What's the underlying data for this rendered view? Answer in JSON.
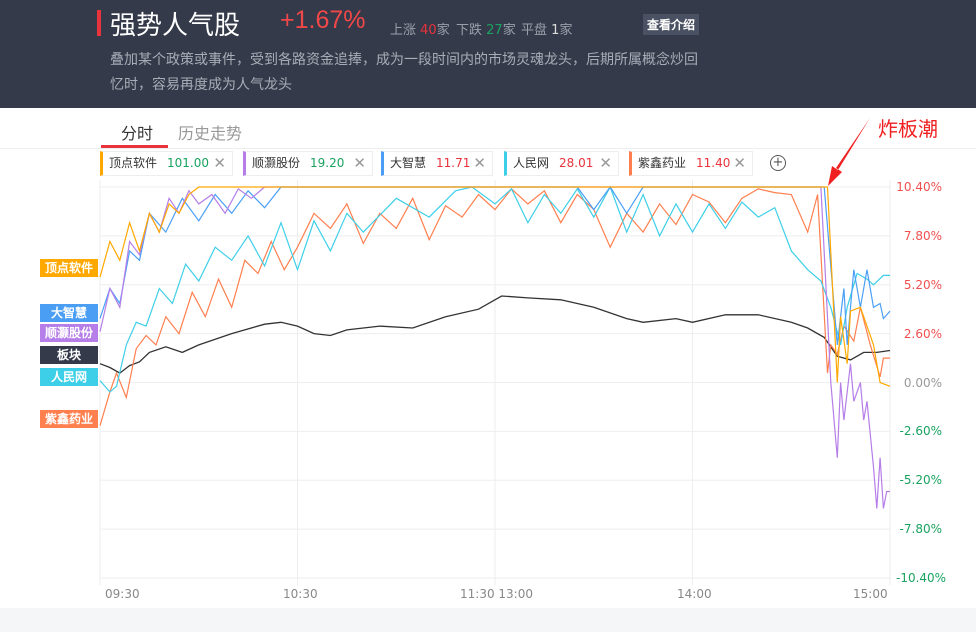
{
  "header": {
    "title": "强势人气股",
    "change": "+1.67%",
    "up_label": "上涨",
    "up_count": "40",
    "down_label": "下跌",
    "down_count": "27",
    "flat_label": "平盘",
    "flat_count": "1",
    "unit": "家",
    "intro_button": "查看介绍",
    "description": "叠加某个政策或事件，受到各路资金追捧，成为一段时间内的市场灵魂龙头，后期所属概念炒回忆时，容易再度成为人气龙头"
  },
  "tabs": [
    {
      "label": "分时",
      "active": true
    },
    {
      "label": "历史走势",
      "active": false
    }
  ],
  "chips": [
    {
      "name": "顶点软件",
      "price": "101.00",
      "color": "#ffa800",
      "price_color": "#1aa260"
    },
    {
      "name": "顺灏股份",
      "price": "19.20",
      "color": "#b57ee8",
      "price_color": "#1aa260"
    },
    {
      "name": "大智慧",
      "price": "11.71",
      "color": "#4a9ff5",
      "price_color": "#e8333c"
    },
    {
      "name": "人民网",
      "price": "28.01",
      "color": "#3ecfe8",
      "price_color": "#e8333c"
    },
    {
      "name": "紫鑫药业",
      "price": "11.40",
      "color": "#ff7f4f",
      "price_color": "#e8333c"
    }
  ],
  "add_icon": "plus-circle-icon",
  "annotation": "炸板潮",
  "left_tags": [
    {
      "label": "顶点软件",
      "color": "#ffa800"
    },
    {
      "label": "大智慧",
      "color": "#4a9ff5"
    },
    {
      "label": "顺灏股份",
      "color": "#b57ee8"
    },
    {
      "label": "板块",
      "color": "#343a4a"
    },
    {
      "label": "人民网",
      "color": "#3ecfe8"
    },
    {
      "label": "紫鑫药业",
      "color": "#ff7f4f"
    }
  ],
  "chart_data": {
    "type": "line",
    "x_unit": "minutes since 09:30 (trading time)",
    "xticks": [
      "09:30",
      "10:30",
      "11:30 13:00",
      "14:00",
      "15:00"
    ],
    "yticks": [
      "10.40%",
      "7.80%",
      "5.20%",
      "2.60%",
      "0.00%",
      "-2.60%",
      "-5.20%",
      "-7.80%",
      "-10.40%"
    ],
    "ylim": [
      -10.4,
      10.4
    ],
    "grid": true,
    "series": [
      {
        "name": "板块",
        "color": "#333333",
        "points": [
          [
            0,
            1.0
          ],
          [
            3,
            0.8
          ],
          [
            6,
            0.5
          ],
          [
            9,
            0.9
          ],
          [
            12,
            1.1
          ],
          [
            15,
            1.6
          ],
          [
            20,
            1.9
          ],
          [
            25,
            1.6
          ],
          [
            30,
            2.0
          ],
          [
            40,
            2.6
          ],
          [
            50,
            3.1
          ],
          [
            55,
            3.2
          ],
          [
            60,
            3.0
          ],
          [
            65,
            2.6
          ],
          [
            70,
            2.5
          ],
          [
            75,
            2.8
          ],
          [
            85,
            3.0
          ],
          [
            95,
            2.9
          ],
          [
            105,
            3.5
          ],
          [
            115,
            3.9
          ],
          [
            122,
            4.6
          ],
          [
            130,
            4.5
          ],
          [
            140,
            4.4
          ],
          [
            150,
            4.0
          ],
          [
            160,
            3.4
          ],
          [
            165,
            3.2
          ],
          [
            175,
            3.4
          ],
          [
            180,
            3.2
          ],
          [
            190,
            3.6
          ],
          [
            200,
            3.6
          ],
          [
            210,
            3.2
          ],
          [
            215,
            2.9
          ],
          [
            220,
            2.4
          ],
          [
            224,
            1.4
          ],
          [
            228,
            1.2
          ],
          [
            232,
            1.6
          ],
          [
            236,
            1.6
          ],
          [
            240,
            1.7
          ]
        ]
      },
      {
        "name": "紫鑫药业",
        "color": "#ff7f4f",
        "points": [
          [
            0,
            -2.3
          ],
          [
            3,
            -0.5
          ],
          [
            5,
            0.5
          ],
          [
            8,
            -0.8
          ],
          [
            11,
            1.8
          ],
          [
            14,
            2.5
          ],
          [
            17,
            2.0
          ],
          [
            20,
            3.5
          ],
          [
            24,
            2.6
          ],
          [
            28,
            4.8
          ],
          [
            32,
            3.5
          ],
          [
            36,
            5.5
          ],
          [
            40,
            4.0
          ],
          [
            44,
            6.5
          ],
          [
            48,
            5.8
          ],
          [
            52,
            7.5
          ],
          [
            56,
            6.0
          ],
          [
            60,
            7.2
          ],
          [
            65,
            9.0
          ],
          [
            70,
            8.2
          ],
          [
            75,
            9.5
          ],
          [
            80,
            7.4
          ],
          [
            85,
            9.0
          ],
          [
            90,
            8.2
          ],
          [
            95,
            9.8
          ],
          [
            100,
            7.6
          ],
          [
            105,
            9.4
          ],
          [
            110,
            8.8
          ],
          [
            115,
            10.0
          ],
          [
            120,
            9.2
          ],
          [
            125,
            10.3
          ],
          [
            130,
            9.5
          ],
          [
            135,
            10.2
          ],
          [
            140,
            8.5
          ],
          [
            145,
            10.0
          ],
          [
            150,
            9.2
          ],
          [
            155,
            7.2
          ],
          [
            160,
            9.0
          ],
          [
            165,
            8.0
          ],
          [
            170,
            9.5
          ],
          [
            175,
            8.4
          ],
          [
            180,
            10.0
          ],
          [
            185,
            9.6
          ],
          [
            190,
            8.5
          ],
          [
            195,
            9.8
          ],
          [
            200,
            10.3
          ],
          [
            205,
            10.1
          ],
          [
            210,
            10.0
          ],
          [
            215,
            8.0
          ],
          [
            218,
            10.0
          ],
          [
            221,
            0.5
          ],
          [
            222,
            2.0
          ],
          [
            224,
            1.5
          ],
          [
            226,
            3.0
          ],
          [
            229,
            2.2
          ],
          [
            231,
            4.0
          ],
          [
            234,
            2.0
          ],
          [
            237,
            0.3
          ],
          [
            238,
            1.3
          ],
          [
            240,
            1.3
          ]
        ]
      },
      {
        "name": "人民网",
        "color": "#3ecfe8",
        "points": [
          [
            0,
            0.1
          ],
          [
            3,
            -0.5
          ],
          [
            5,
            -0.2
          ],
          [
            8,
            2.0
          ],
          [
            11,
            3.2
          ],
          [
            14,
            3.0
          ],
          [
            18,
            5.0
          ],
          [
            22,
            4.2
          ],
          [
            26,
            6.3
          ],
          [
            30,
            5.4
          ],
          [
            35,
            7.2
          ],
          [
            40,
            6.5
          ],
          [
            45,
            7.8
          ],
          [
            50,
            6.2
          ],
          [
            55,
            8.5
          ],
          [
            60,
            6.0
          ],
          [
            65,
            8.6
          ],
          [
            70,
            7.0
          ],
          [
            75,
            9.0
          ],
          [
            80,
            8.0
          ],
          [
            90,
            9.8
          ],
          [
            100,
            8.8
          ],
          [
            108,
            10.2
          ],
          [
            113,
            10.4
          ],
          [
            120,
            9.5
          ],
          [
            125,
            10.3
          ],
          [
            130,
            8.5
          ],
          [
            135,
            10.0
          ],
          [
            140,
            9.0
          ],
          [
            145,
            10.3
          ],
          [
            150,
            8.8
          ],
          [
            155,
            10.4
          ],
          [
            160,
            8.0
          ],
          [
            165,
            10.0
          ],
          [
            170,
            7.8
          ],
          [
            175,
            9.5
          ],
          [
            180,
            8.0
          ],
          [
            185,
            9.5
          ],
          [
            190,
            8.2
          ],
          [
            195,
            9.6
          ],
          [
            200,
            8.8
          ],
          [
            205,
            9.3
          ],
          [
            210,
            7.0
          ],
          [
            215,
            6.0
          ],
          [
            219,
            5.4
          ],
          [
            222,
            4.0
          ],
          [
            225,
            2.0
          ],
          [
            227,
            4.0
          ],
          [
            230,
            5.8
          ],
          [
            233,
            5.5
          ],
          [
            235,
            5.2
          ],
          [
            238,
            5.7
          ],
          [
            240,
            5.7
          ]
        ]
      },
      {
        "name": "大智慧",
        "color": "#4a9ff5",
        "points": [
          [
            0,
            3.4
          ],
          [
            3,
            5.0
          ],
          [
            6,
            4.2
          ],
          [
            9,
            7.0
          ],
          [
            12,
            6.5
          ],
          [
            15,
            9.0
          ],
          [
            20,
            8.0
          ],
          [
            25,
            9.8
          ],
          [
            30,
            8.6
          ],
          [
            35,
            10.0
          ],
          [
            40,
            9.0
          ],
          [
            45,
            10.2
          ],
          [
            50,
            9.3
          ],
          [
            55,
            10.4
          ],
          [
            145,
            10.4
          ],
          [
            150,
            9.2
          ],
          [
            155,
            10.4
          ],
          [
            160,
            9.0
          ],
          [
            165,
            10.4
          ],
          [
            220,
            10.4
          ],
          [
            224,
            2.0
          ],
          [
            226,
            5.0
          ],
          [
            227,
            2.0
          ],
          [
            229,
            6.0
          ],
          [
            231,
            4.0
          ],
          [
            233,
            6.0
          ],
          [
            235,
            4.0
          ],
          [
            237,
            4.2
          ],
          [
            238,
            3.4
          ],
          [
            240,
            3.8
          ]
        ]
      },
      {
        "name": "顺灏股份",
        "color": "#b57ee8",
        "points": [
          [
            0,
            2.7
          ],
          [
            3,
            5.0
          ],
          [
            6,
            4.0
          ],
          [
            9,
            7.5
          ],
          [
            12,
            6.8
          ],
          [
            15,
            9.0
          ],
          [
            18,
            8.0
          ],
          [
            21,
            9.8
          ],
          [
            24,
            9.0
          ],
          [
            27,
            10.2
          ],
          [
            30,
            9.5
          ],
          [
            34,
            10.0
          ],
          [
            38,
            9.0
          ],
          [
            42,
            10.3
          ],
          [
            46,
            9.8
          ],
          [
            50,
            10.4
          ],
          [
            219,
            10.4
          ],
          [
            222,
            0.0
          ],
          [
            224,
            -4.0
          ],
          [
            225,
            0.0
          ],
          [
            226,
            -2.0
          ],
          [
            228,
            1.0
          ],
          [
            229,
            -1.0
          ],
          [
            231,
            0.0
          ],
          [
            232,
            -2.0
          ],
          [
            233,
            -1.0
          ],
          [
            235,
            -4.5
          ],
          [
            236,
            -6.7
          ],
          [
            237,
            -4.0
          ],
          [
            238,
            -6.7
          ],
          [
            239,
            -5.8
          ],
          [
            240,
            -5.8
          ]
        ]
      },
      {
        "name": "顶点软件",
        "color": "#ffa800",
        "points": [
          [
            0,
            5.6
          ],
          [
            3,
            7.5
          ],
          [
            6,
            6.5
          ],
          [
            9,
            8.5
          ],
          [
            12,
            7.0
          ],
          [
            15,
            9.0
          ],
          [
            18,
            8.0
          ],
          [
            21,
            9.5
          ],
          [
            24,
            9.0
          ],
          [
            27,
            10.0
          ],
          [
            30,
            10.4
          ],
          [
            221,
            10.4
          ],
          [
            224,
            0.0
          ],
          [
            225,
            3.5
          ],
          [
            227,
            1.0
          ],
          [
            228,
            3.8
          ],
          [
            231,
            4.0
          ],
          [
            232,
            3.5
          ],
          [
            235,
            2.0
          ],
          [
            237,
            0.0
          ],
          [
            240,
            -0.2
          ]
        ]
      }
    ]
  }
}
